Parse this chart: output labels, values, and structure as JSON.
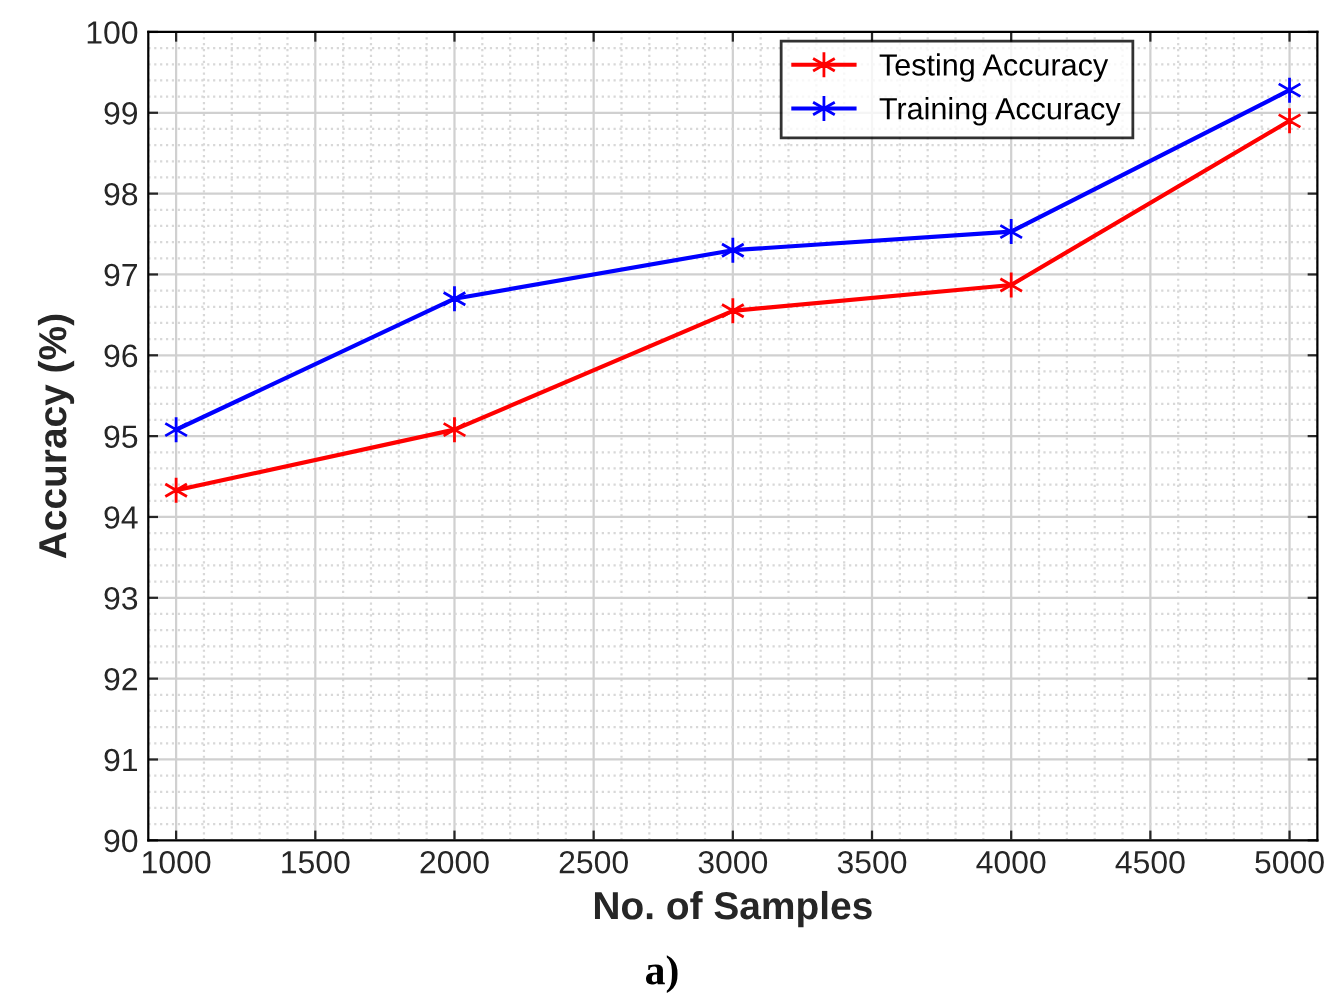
{
  "chart_data": {
    "type": "line",
    "xlabel": "No. of Samples",
    "ylabel": "Accuracy (%)",
    "x": [
      1000,
      2000,
      3000,
      4000,
      5000
    ],
    "series": [
      {
        "name": "Testing Accuracy",
        "color": "#ff0000",
        "values": [
          94.33,
          95.08,
          96.55,
          96.87,
          98.9
        ]
      },
      {
        "name": "Training Accuracy",
        "color": "#0000ff",
        "values": [
          95.08,
          96.7,
          97.3,
          97.53,
          99.28
        ]
      }
    ],
    "xlim": [
      900,
      5100
    ],
    "xticks": [
      1000,
      1500,
      2000,
      2500,
      3000,
      3500,
      4000,
      4500,
      5000
    ],
    "ylim": [
      90,
      100
    ],
    "yticks": [
      90,
      91,
      92,
      93,
      94,
      95,
      96,
      97,
      98,
      99,
      100
    ],
    "grid": true,
    "legend": "top right",
    "marker": "cross",
    "line_style": "solid",
    "annotations": [
      "a)"
    ]
  }
}
